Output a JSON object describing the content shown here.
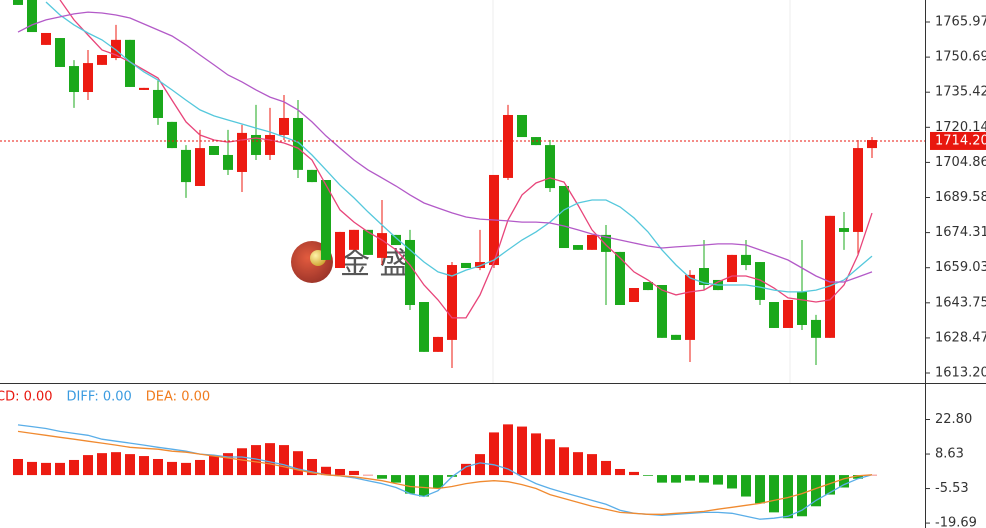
{
  "chart_data": [
    {
      "type": "candlestick",
      "up_color": "#ec1b12",
      "down_color": "#1ba81b",
      "ylim": [
        1608.85,
        1775.55
      ],
      "yticks": [
        1765.97,
        1750.69,
        1735.42,
        1720.14,
        1704.86,
        1689.58,
        1674.31,
        1659.03,
        1643.75,
        1628.47,
        {
          "value": 1613.2,
          "label": "1613.20"
        }
      ],
      "last_price": {
        "value": 1714.2,
        "label": "1714.20",
        "color": "#e8170f"
      },
      "watermark": "金 盛",
      "open": [
        1775.6,
        1775.6,
        1756.0,
        1759.0,
        1746.8,
        1735.5,
        1747.3,
        1750.3,
        1758.2,
        1736.4,
        1736.4,
        1722.5,
        1710.3,
        1694.6,
        1712.0,
        1708.1,
        1700.7,
        1716.8,
        1708.1,
        1716.8,
        1724.2,
        1701.6,
        1697.2,
        1658.9,
        1666.8,
        1675.5,
        1663.3,
        1673.3,
        1671.1,
        1644.1,
        1622.4,
        1627.6,
        1661.1,
        1658.9,
        1660.2,
        1698.1,
        1725.5,
        1715.9,
        1712.4,
        1694.6,
        1668.9,
        1666.8,
        1673.3,
        1665.9,
        1644.1,
        1652.8,
        1651.5,
        1629.8,
        1627.6,
        1658.9,
        1653.7,
        1652.8,
        1664.6,
        1661.5,
        1644.1,
        1632.8,
        1648.5,
        1636.3,
        1628.5,
        1676.3,
        1674.6,
        1711.1
      ],
      "high": [
        1775.6,
        1775.6,
        1761.2,
        1759.0,
        1749.4,
        1753.8,
        1751.6,
        1764.7,
        1758.2,
        1737.3,
        1740.7,
        1722.5,
        1712.4,
        1719.0,
        1712.0,
        1719.0,
        1721.2,
        1729.9,
        1728.6,
        1734.2,
        1732.0,
        1701.6,
        1697.2,
        1674.6,
        1675.5,
        1675.5,
        1688.5,
        1673.3,
        1675.5,
        1644.1,
        1628.9,
        1661.5,
        1661.1,
        1675.5,
        1699.4,
        1729.9,
        1725.5,
        1715.9,
        1714.6,
        1694.6,
        1668.9,
        1673.3,
        1677.6,
        1665.9,
        1650.2,
        1652.8,
        1651.5,
        1629.8,
        1658.0,
        1671.1,
        1653.7,
        1664.6,
        1671.1,
        1661.5,
        1644.1,
        1645.0,
        1671.1,
        1638.5,
        1681.6,
        1683.3,
        1714.6,
        1715.9
      ],
      "low": [
        1773.4,
        1761.6,
        1756.0,
        1746.4,
        1728.6,
        1732.0,
        1747.3,
        1749.4,
        1737.7,
        1736.4,
        1721.2,
        1711.1,
        1689.4,
        1694.6,
        1708.1,
        1699.4,
        1692.0,
        1705.9,
        1705.9,
        1714.6,
        1698.1,
        1696.3,
        1662.4,
        1658.9,
        1666.8,
        1664.6,
        1660.2,
        1668.9,
        1640.6,
        1622.4,
        1622.4,
        1615.4,
        1658.9,
        1658.0,
        1658.9,
        1697.2,
        1715.9,
        1712.4,
        1692.0,
        1667.6,
        1666.8,
        1666.8,
        1642.8,
        1642.8,
        1644.1,
        1649.3,
        1628.5,
        1627.6,
        1618.0,
        1649.3,
        1649.3,
        1652.8,
        1658.0,
        1642.8,
        1632.8,
        1632.8,
        1631.9,
        1616.7,
        1628.5,
        1666.8,
        1664.6,
        1706.8
      ],
      "close": [
        1773.4,
        1761.6,
        1761.2,
        1746.4,
        1735.5,
        1748.1,
        1751.6,
        1758.2,
        1737.7,
        1737.3,
        1724.2,
        1711.1,
        1696.3,
        1711.1,
        1708.1,
        1701.6,
        1717.7,
        1708.1,
        1716.8,
        1724.2,
        1701.6,
        1696.3,
        1662.4,
        1674.6,
        1675.5,
        1664.6,
        1674.1,
        1668.9,
        1642.8,
        1622.4,
        1628.9,
        1660.2,
        1658.9,
        1661.5,
        1699.4,
        1725.5,
        1715.9,
        1712.4,
        1693.7,
        1667.6,
        1666.8,
        1673.3,
        1665.9,
        1642.8,
        1650.2,
        1649.3,
        1628.5,
        1627.6,
        1655.9,
        1651.5,
        1649.3,
        1664.6,
        1660.2,
        1645.0,
        1632.8,
        1645.0,
        1634.1,
        1628.5,
        1681.6,
        1674.6,
        1711.1,
        1714.6
      ],
      "lines": [
        {
          "color": "#e8457a",
          "values": [
            null,
            null,
            null,
            1775.6,
            1766.9,
            1760.3,
            1753.8,
            1751.6,
            1748.6,
            1745.1,
            1741.6,
            1732.0,
            1722.5,
            1716.8,
            1714.6,
            1713.7,
            1714.6,
            1715.5,
            1714.6,
            1713.3,
            1711.1,
            1705.9,
            1695.0,
            1684.2,
            1678.9,
            1674.6,
            1671.1,
            1666.8,
            1660.2,
            1651.5,
            1645.0,
            1637.2,
            1637.2,
            1647.2,
            1661.5,
            1679.8,
            1690.7,
            1695.9,
            1698.1,
            1696.3,
            1686.3,
            1675.5,
            1668.9,
            1663.3,
            1657.2,
            1653.7,
            1649.3,
            1647.2,
            1648.5,
            1649.3,
            1652.8,
            1655.4,
            1655.4,
            1653.7,
            1650.2,
            1645.9,
            1645.0,
            1644.1,
            1645.0,
            1651.5,
            1664.6,
            1682.8
          ]
        },
        {
          "color": "#55c8dc",
          "values": [
            null,
            null,
            1774.7,
            1769.0,
            1764.7,
            1761.2,
            1758.2,
            1753.8,
            1748.6,
            1744.2,
            1740.7,
            1736.4,
            1732.0,
            1727.7,
            1725.1,
            1723.3,
            1721.6,
            1719.8,
            1718.1,
            1715.9,
            1713.7,
            1708.1,
            1701.6,
            1695.0,
            1689.4,
            1683.3,
            1677.6,
            1672.0,
            1666.8,
            1661.5,
            1657.2,
            1655.4,
            1658.0,
            1659.8,
            1662.4,
            1666.8,
            1671.1,
            1674.6,
            1678.9,
            1684.2,
            1687.2,
            1688.5,
            1688.5,
            1685.5,
            1680.7,
            1674.6,
            1666.8,
            1660.2,
            1654.6,
            1652.4,
            1651.5,
            1651.5,
            1651.5,
            1650.6,
            1649.3,
            1648.5,
            1648.5,
            1649.3,
            1651.1,
            1653.7,
            1658.9,
            1664.1
          ]
        },
        {
          "color": "#b35ac8",
          "values": [
            1761.6,
            1764.7,
            1766.9,
            1768.2,
            1769.5,
            1770.3,
            1769.9,
            1769.0,
            1767.7,
            1765.1,
            1762.5,
            1759.9,
            1756.0,
            1751.6,
            1747.3,
            1742.9,
            1739.9,
            1736.4,
            1733.3,
            1731.2,
            1727.7,
            1722.5,
            1716.4,
            1711.1,
            1705.9,
            1701.6,
            1698.1,
            1694.6,
            1690.7,
            1687.2,
            1685.0,
            1682.9,
            1681.1,
            1680.2,
            1679.8,
            1679.4,
            1678.9,
            1678.9,
            1678.5,
            1677.2,
            1675.5,
            1673.7,
            1672.4,
            1671.1,
            1669.8,
            1668.5,
            1667.6,
            1668.1,
            1668.5,
            1668.9,
            1669.4,
            1669.4,
            1668.9,
            1666.8,
            1664.6,
            1662.4,
            1658.9,
            1655.4,
            1652.8,
            1652.8,
            1655.0,
            1657.2
          ]
        }
      ]
    },
    {
      "type": "macd",
      "up_color": "#ec1b12",
      "down_color": "#1ba81b",
      "ylim": [
        -21.71,
        36.95
      ],
      "yticks": [
        {
          "value": 22.8,
          "label": "22.80"
        },
        8.63,
        -5.53,
        -19.69
      ],
      "legend": [
        {
          "label": "CD: 0.00",
          "color": "#e8170f"
        },
        {
          "label": "DIFF: 0.00",
          "color": "#3a9be0"
        },
        {
          "label": "DEA: 0.00",
          "color": "#f07c1e"
        }
      ],
      "values": [
        6.6,
        5.4,
        5.0,
        5.0,
        6.2,
        8.2,
        9.0,
        9.4,
        8.6,
        7.8,
        6.6,
        5.4,
        5.0,
        6.2,
        7.8,
        9.0,
        11.0,
        12.3,
        13.1,
        12.3,
        9.8,
        6.6,
        3.4,
        2.5,
        1.7,
        0.1,
        -1.5,
        -3.1,
        -7.6,
        -8.8,
        -5.5,
        -0.7,
        4.6,
        8.6,
        17.5,
        20.8,
        19.9,
        17.1,
        14.7,
        11.4,
        9.4,
        8.6,
        5.8,
        2.5,
        1.3,
        -0.3,
        -3.1,
        -3.1,
        -2.3,
        -3.1,
        -3.9,
        -5.5,
        -8.8,
        -11.6,
        -15.3,
        -17.7,
        -16.9,
        -12.8,
        -8.0,
        -5.1,
        -1.5,
        0.1
      ],
      "lines": [
        {
          "color": "#5aaee8",
          "values": [
            20.6,
            19.9,
            19.1,
            17.9,
            17.1,
            16.3,
            14.7,
            13.9,
            13.1,
            12.3,
            11.4,
            10.6,
            9.8,
            8.6,
            8.2,
            7.4,
            7.4,
            6.6,
            5.4,
            4.2,
            2.5,
            1.3,
            0.1,
            -0.3,
            -1.1,
            -2.3,
            -3.5,
            -5.1,
            -7.6,
            -8.8,
            -6.4,
            -0.7,
            3.4,
            5.0,
            4.2,
            2.5,
            -0.7,
            -3.5,
            -5.5,
            -7.2,
            -8.8,
            -10.4,
            -12.0,
            -14.4,
            -15.7,
            -16.1,
            -16.5,
            -16.1,
            -15.7,
            -15.3,
            -15.3,
            -15.7,
            -16.9,
            -18.1,
            -17.7,
            -16.9,
            -14.4,
            -10.4,
            -7.2,
            -3.9,
            -1.5,
            0.1
          ]
        },
        {
          "color": "#f08a30",
          "values": [
            17.9,
            17.1,
            16.3,
            15.5,
            14.7,
            13.9,
            13.1,
            12.3,
            11.4,
            11.0,
            10.6,
            9.8,
            9.4,
            8.6,
            7.8,
            7.0,
            6.2,
            5.4,
            4.6,
            3.4,
            2.1,
            0.9,
            0.1,
            -0.3,
            -0.7,
            -1.5,
            -2.3,
            -3.5,
            -4.7,
            -5.1,
            -5.5,
            -4.7,
            -3.5,
            -2.7,
            -2.3,
            -2.7,
            -3.9,
            -5.5,
            -8.0,
            -9.6,
            -11.2,
            -12.8,
            -14.0,
            -15.3,
            -15.7,
            -16.1,
            -16.1,
            -15.7,
            -15.3,
            -14.9,
            -14.0,
            -13.2,
            -12.4,
            -11.6,
            -10.4,
            -9.2,
            -7.6,
            -5.5,
            -3.5,
            -1.5,
            -0.3,
            0.1
          ]
        }
      ]
    }
  ]
}
